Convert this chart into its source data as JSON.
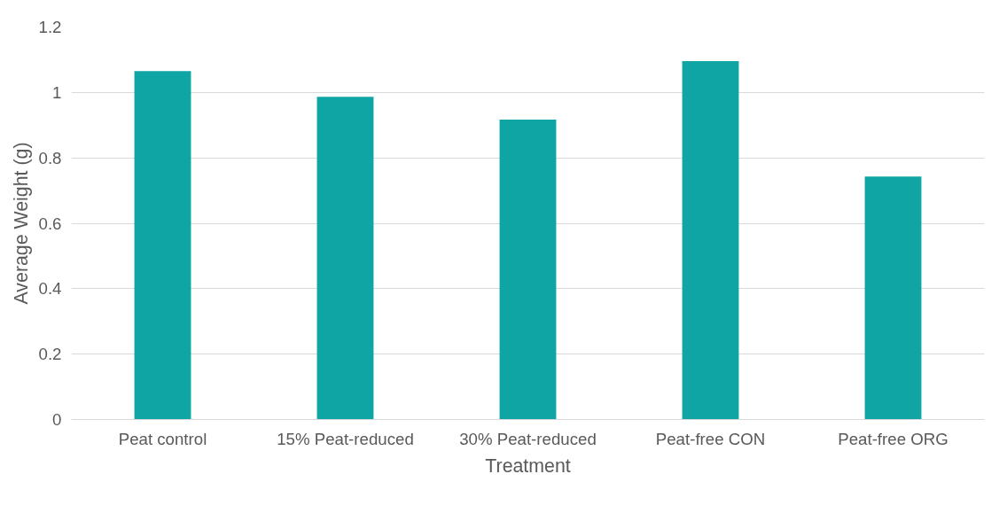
{
  "chart_data": {
    "type": "bar",
    "xlabel": "Treatment",
    "ylabel": "Average Weight (g)",
    "categories": [
      "Peat control",
      "15% Peat-reduced",
      "30% Peat-reduced",
      "Peat-free CON",
      "Peat-free ORG"
    ],
    "values": [
      1.065,
      0.987,
      0.917,
      1.096,
      0.743
    ],
    "color": "#10a5a5",
    "ylim": [
      0,
      1.2
    ],
    "yticks": [
      0,
      {
        "value": 0.2,
        "label": "0.2"
      },
      {
        "value": 0.4,
        "label": "0.4"
      },
      {
        "value": 0.6,
        "label": "0.6"
      },
      {
        "value": 0.8,
        "label": "0.8"
      },
      1,
      {
        "value": 1.2,
        "label": "1.2"
      }
    ],
    "grid": "y"
  }
}
